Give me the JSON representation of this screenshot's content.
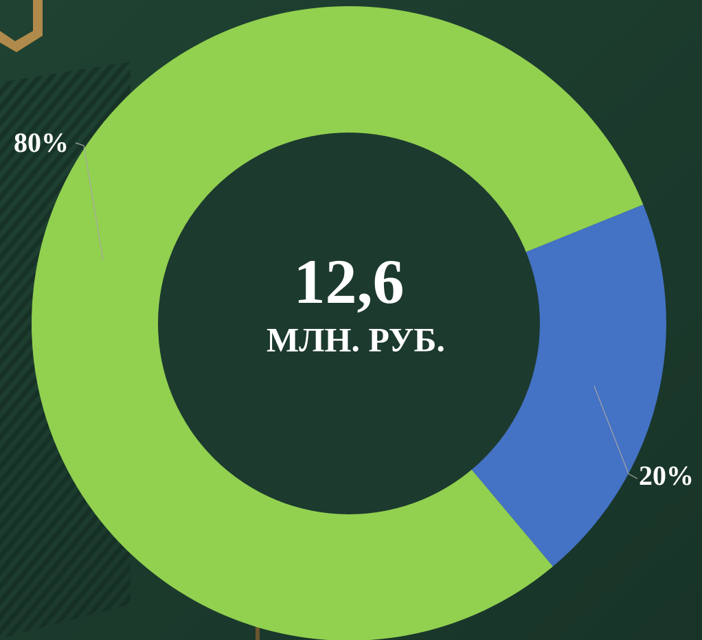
{
  "chart_data": {
    "type": "donut",
    "values": [
      20,
      80
    ],
    "value_labels": [
      "20%",
      "80%"
    ],
    "colors": [
      "#4472c4",
      "#92d050"
    ],
    "center_value": "12,6",
    "center_label": "МЛН. РУБ."
  }
}
